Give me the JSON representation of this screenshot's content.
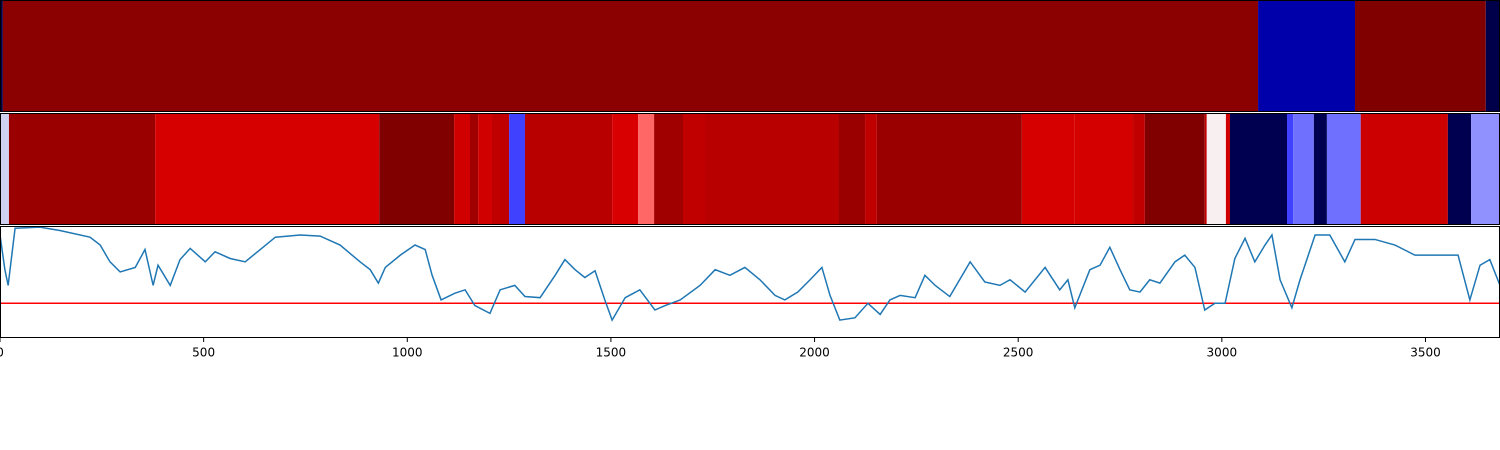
{
  "chart_data": [
    {
      "type": "heatmap",
      "xlim": [
        0,
        3683
      ],
      "bins": [
        0,
        7,
        3089,
        3327,
        3648,
        3683
      ],
      "colors": [
        "#00004a",
        "#8b0000",
        "#0000aa",
        "#800000",
        "#00004a"
      ]
    },
    {
      "type": "heatmap",
      "xlim": [
        0,
        3683
      ],
      "bins": [
        0,
        22,
        381,
        931,
        1115,
        1154,
        1174,
        1208,
        1250,
        1289,
        1503,
        1567,
        1606,
        1677,
        1731,
        2060,
        2124,
        2153,
        2509,
        2639,
        2782,
        2811,
        2958,
        2963,
        3010,
        3020,
        3160,
        3175,
        3226,
        3258,
        3341,
        3555,
        3612,
        3683
      ],
      "colors": [
        "#d0d0f0",
        "#9a0000",
        "#d60000",
        "#800000",
        "#d00000",
        "#a00000",
        "#d00000",
        "#c00000",
        "#4040ff",
        "#b80000",
        "#d80000",
        "#ff6666",
        "#a00000",
        "#c00000",
        "#b80000",
        "#9a0000",
        "#c00000",
        "#9a0000",
        "#d60000",
        "#d40000",
        "#c00000",
        "#800000",
        "#c00000",
        "#f8f0f0",
        "#d00000",
        "#000050",
        "#4040ff",
        "#7070ff",
        "#000050",
        "#7070ff",
        "#cc0000",
        "#000050",
        "#9090ff"
      ]
    },
    {
      "type": "line",
      "xlim": [
        0,
        3683
      ],
      "ylim": [
        0,
        1
      ],
      "color": "#1f77b4",
      "xticks": [
        0,
        500,
        1000,
        1500,
        2000,
        2500,
        3000,
        3500
      ],
      "threshold": {
        "value": 0.31,
        "color": "#ff0000"
      },
      "x": [
        0,
        12,
        20,
        37,
        98,
        147,
        221,
        246,
        270,
        295,
        332,
        356,
        376,
        388,
        418,
        442,
        467,
        504,
        528,
        565,
        602,
        639,
        676,
        737,
        786,
        835,
        884,
        909,
        929,
        946,
        983,
        1019,
        1044,
        1061,
        1083,
        1117,
        1142,
        1166,
        1203,
        1228,
        1264,
        1289,
        1326,
        1363,
        1387,
        1412,
        1436,
        1461,
        1485,
        1503,
        1535,
        1571,
        1608,
        1633,
        1670,
        1719,
        1756,
        1792,
        1829,
        1866,
        1903,
        1927,
        1959,
        1989,
        2018,
        2038,
        2062,
        2099,
        2131,
        2161,
        2185,
        2210,
        2247,
        2271,
        2296,
        2332,
        2382,
        2418,
        2455,
        2480,
        2517,
        2566,
        2602,
        2622,
        2639,
        2676,
        2701,
        2725,
        2750,
        2774,
        2799,
        2823,
        2848,
        2885,
        2909,
        2934,
        2958,
        2983,
        3008,
        3032,
        3057,
        3081,
        3106,
        3123,
        3143,
        3172,
        3192,
        3229,
        3265,
        3302,
        3327,
        3376,
        3425,
        3474,
        3535,
        3580,
        3609,
        3634,
        3658,
        3683
      ],
      "values": [
        0.92,
        0.61,
        0.47,
        0.98,
        0.99,
        0.96,
        0.9,
        0.83,
        0.68,
        0.59,
        0.63,
        0.79,
        0.47,
        0.65,
        0.47,
        0.7,
        0.8,
        0.68,
        0.77,
        0.71,
        0.68,
        0.79,
        0.9,
        0.92,
        0.91,
        0.83,
        0.68,
        0.61,
        0.49,
        0.63,
        0.74,
        0.83,
        0.79,
        0.56,
        0.34,
        0.4,
        0.43,
        0.29,
        0.22,
        0.43,
        0.47,
        0.37,
        0.36,
        0.56,
        0.7,
        0.61,
        0.54,
        0.6,
        0.34,
        0.16,
        0.36,
        0.43,
        0.25,
        0.29,
        0.34,
        0.47,
        0.61,
        0.56,
        0.63,
        0.52,
        0.38,
        0.34,
        0.41,
        0.52,
        0.63,
        0.38,
        0.16,
        0.18,
        0.31,
        0.21,
        0.34,
        0.38,
        0.36,
        0.56,
        0.47,
        0.37,
        0.68,
        0.5,
        0.47,
        0.52,
        0.41,
        0.63,
        0.43,
        0.52,
        0.27,
        0.61,
        0.65,
        0.81,
        0.61,
        0.43,
        0.41,
        0.52,
        0.49,
        0.68,
        0.74,
        0.63,
        0.25,
        0.31,
        0.31,
        0.71,
        0.89,
        0.68,
        0.83,
        0.92,
        0.52,
        0.27,
        0.52,
        0.92,
        0.92,
        0.68,
        0.88,
        0.88,
        0.83,
        0.74,
        0.74,
        0.74,
        0.34,
        0.65,
        0.7,
        0.47
      ]
    }
  ]
}
